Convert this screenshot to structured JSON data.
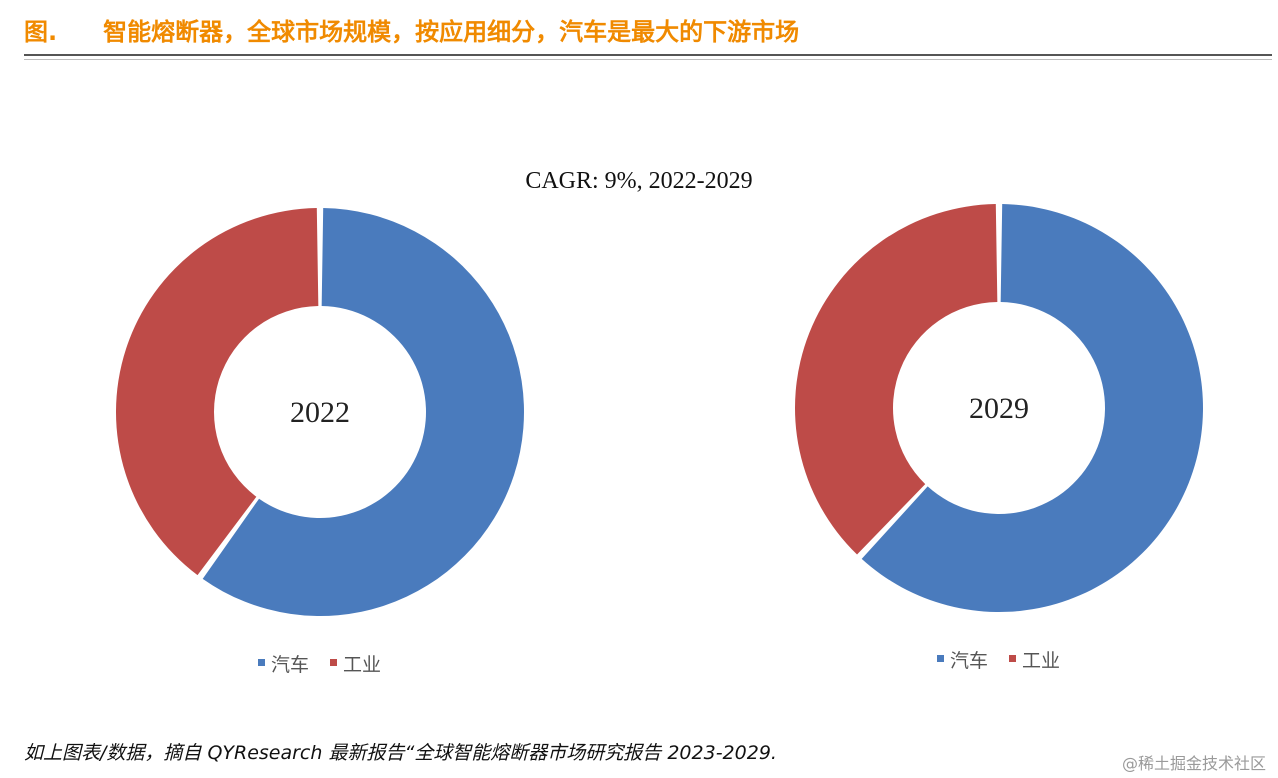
{
  "figure": {
    "prefix": "图.",
    "title": "智能熔断器，全球市场规模，按应用细分，汽车是最大的下游市场"
  },
  "subtitle": "CAGR: 9%, 2022-2029",
  "colors": {
    "auto": "#4a7bbd",
    "industry": "#be4b48",
    "title": "#f08a00"
  },
  "chart_data": [
    {
      "type": "pie",
      "variant": "donut",
      "center_label": "2022",
      "categories": [
        "汽车",
        "工业"
      ],
      "values": [
        60,
        40
      ],
      "unit": "%",
      "legend": "bottom"
    },
    {
      "type": "pie",
      "variant": "donut",
      "center_label": "2029",
      "categories": [
        "汽车",
        "工业"
      ],
      "values": [
        62,
        38
      ],
      "unit": "%",
      "legend": "bottom"
    }
  ],
  "footer": "如上图表/数据，摘自 QYResearch 最新报告“全球智能熔断器市场研究报告 2023-2029.",
  "watermark": "@稀土掘金技术社区"
}
